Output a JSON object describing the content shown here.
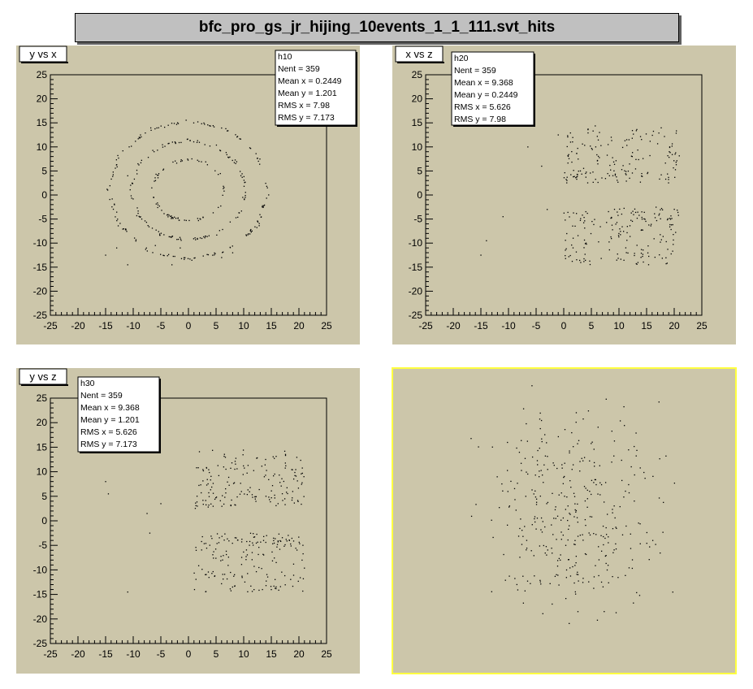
{
  "canvas_title": "bfc_pro_gs_jr_hijing_10events_1_1_111.svt_hits",
  "colors": {
    "pad_background": "#ccc6aa",
    "frame": "#000000",
    "selected_pad_border": "#ffff40",
    "marker": "#000000",
    "title_background": "#c0c0c0"
  },
  "chart_data": [
    {
      "type": "scatter",
      "pad": "top-left",
      "title": "y vs x",
      "xlim": [
        -25,
        25
      ],
      "ylim": [
        -25,
        25
      ],
      "x_ticks": [
        -25,
        -20,
        -15,
        -10,
        -5,
        0,
        5,
        10,
        15,
        20,
        25
      ],
      "y_ticks": [
        -25,
        -20,
        -15,
        -10,
        -5,
        0,
        5,
        10,
        15,
        20,
        25
      ],
      "grid": false,
      "stats": {
        "name": "h10",
        "lines": [
          "Nent = 359",
          "Mean x = 0.2449",
          "Mean y = 1.201",
          "RMS x = 7.98",
          "RMS y = 7.173"
        ]
      },
      "pattern": "concentric_rings",
      "ring_radii": [
        6.5,
        10.5,
        14.5
      ],
      "ring_counts": [
        70,
        120,
        150
      ],
      "points": [
        [
          -15,
          -12.5
        ],
        [
          -11,
          -14.5
        ],
        [
          -3,
          -14.5
        ],
        [
          6,
          -13
        ],
        [
          -13,
          -11
        ],
        [
          8,
          -12
        ],
        [
          -11,
          4
        ],
        [
          -6,
          -10.5
        ],
        [
          -1.5,
          -11
        ]
      ]
    },
    {
      "type": "scatter",
      "pad": "top-right",
      "title": "x vs z",
      "xlim": [
        -25,
        25
      ],
      "ylim": [
        -25,
        25
      ],
      "x_ticks": [
        -25,
        -20,
        -15,
        -10,
        -5,
        0,
        5,
        10,
        15,
        20,
        25
      ],
      "y_ticks": [
        -25,
        -20,
        -15,
        -10,
        -5,
        0,
        5,
        10,
        15,
        20,
        25
      ],
      "grid": false,
      "stats": {
        "name": "h20",
        "lines": [
          "Nent = 359",
          "Mean x = 9.368",
          "Mean y = 0.2449",
          "RMS x = 5.626",
          "RMS y = 7.98"
        ]
      },
      "pattern": "cluster",
      "cluster_x_range": [
        0,
        21
      ],
      "cluster_y_range": [
        -14.5,
        14.5
      ],
      "points": [
        [
          -6.5,
          10
        ],
        [
          -11,
          -4.5
        ],
        [
          -15,
          -12.5
        ],
        [
          -14,
          -9.5
        ],
        [
          -4,
          6
        ],
        [
          -3,
          -3
        ],
        [
          -1,
          12.5
        ]
      ]
    },
    {
      "type": "scatter",
      "pad": "bottom-left",
      "title": "y vs z",
      "xlim": [
        -25,
        25
      ],
      "ylim": [
        -25,
        25
      ],
      "x_ticks": [
        -25,
        -20,
        -15,
        -10,
        -5,
        0,
        5,
        10,
        15,
        20,
        25
      ],
      "y_ticks": [
        -25,
        -20,
        -15,
        -10,
        -5,
        0,
        5,
        10,
        15,
        20,
        25
      ],
      "grid": false,
      "stats": {
        "name": "h30",
        "lines": [
          "Nent = 359",
          "Mean x = 9.368",
          "Mean y = 1.201",
          "RMS x = 5.626",
          "RMS y = 7.173"
        ]
      },
      "pattern": "cluster",
      "cluster_x_range": [
        1,
        21
      ],
      "cluster_y_range": [
        -14.5,
        14.5
      ],
      "points": [
        [
          -15,
          8
        ],
        [
          -14.5,
          5.5
        ],
        [
          -7,
          -2.5
        ],
        [
          -7.5,
          1.5
        ],
        [
          -11,
          -14.5
        ],
        [
          -5,
          3.5
        ]
      ]
    },
    {
      "type": "scatter",
      "pad": "bottom-right",
      "title": "",
      "axes": false,
      "frame": "none",
      "note": "3D point cloud view without axes",
      "pattern": "cloud"
    }
  ]
}
